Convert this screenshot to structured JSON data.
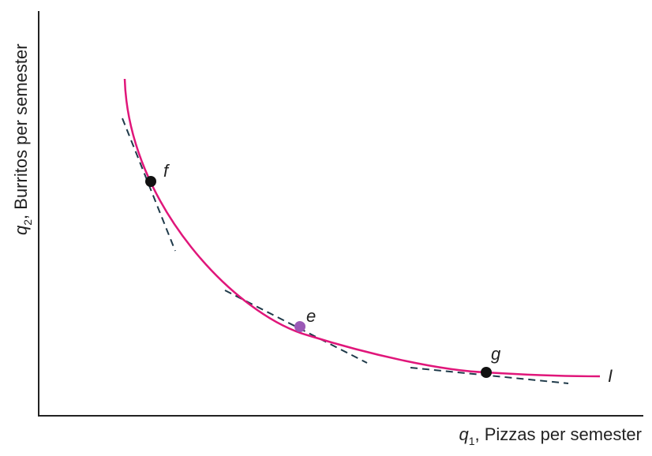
{
  "x_axis": {
    "variable": "q",
    "subscript": "1",
    "label": ", Pizzas per semester"
  },
  "y_axis": {
    "variable": "q",
    "subscript": "2",
    "label": ", Burritos per semester"
  },
  "curve": {
    "label": "I"
  },
  "points": [
    {
      "label": "f"
    },
    {
      "label": "e"
    },
    {
      "label": "g"
    }
  ]
}
